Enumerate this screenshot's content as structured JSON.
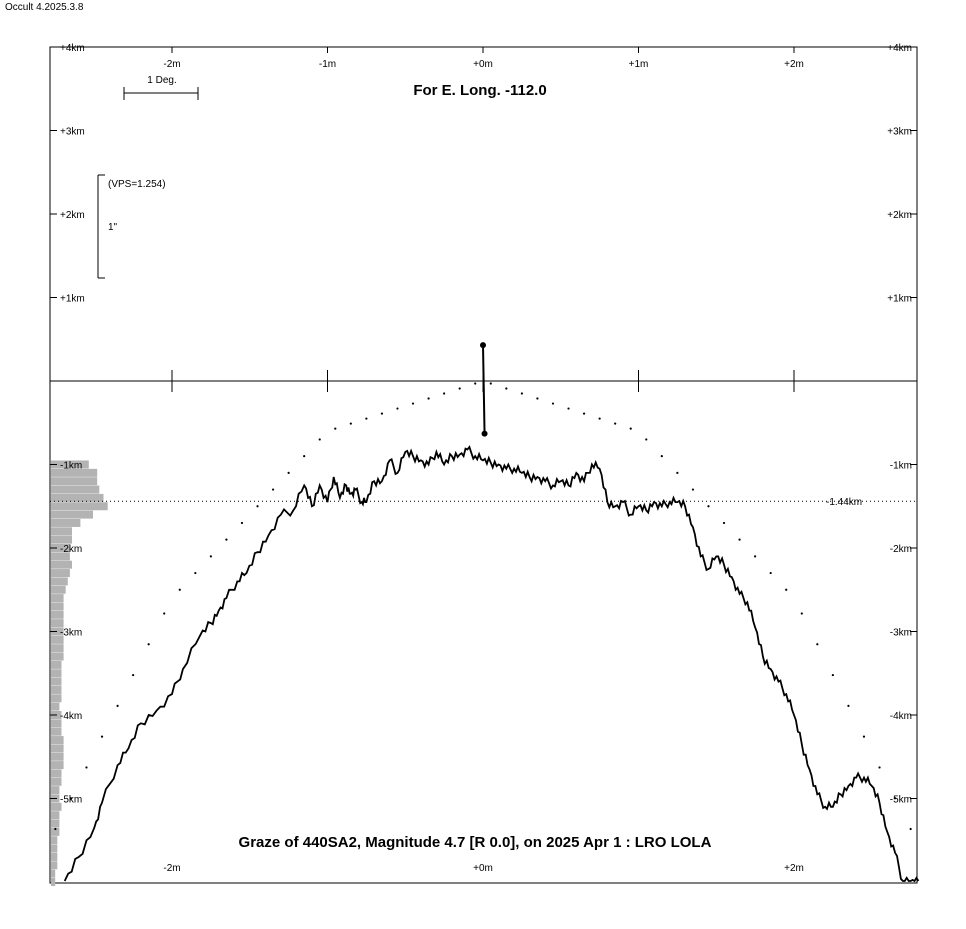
{
  "app": {
    "title": "Occult 4.2025.3.8"
  },
  "chart_data": {
    "type": "line",
    "title": "For E. Long. -112.0",
    "caption": "Graze of  440SA2,  Magnitude 4.7 [R 0.0],  on 2025 Apr  1  :  LRO LOLA",
    "x_axis": {
      "range_m": [
        -2.8,
        2.8
      ],
      "ticks": [
        -2,
        -1,
        0,
        1,
        2
      ],
      "tick_labels": [
        "-2m",
        "-1m",
        "+0m",
        "+1m",
        "+2m"
      ]
    },
    "y_axis": {
      "range_km": [
        -6.0,
        4.0
      ],
      "ticks": [
        4,
        3,
        2,
        1,
        -1,
        -2,
        -3,
        -4,
        -5
      ],
      "tick_labels": [
        "+4km",
        "+3km",
        "+2km",
        "+1km",
        "-1km",
        "-2km",
        "-3km",
        "-4km",
        "-5km"
      ]
    },
    "scale_bar": {
      "label": "1 Deg."
    },
    "vps_bar": {
      "vps_label": "(VPS=1.254)",
      "unit_label": "1\""
    },
    "reference_line": {
      "value_km": -1.44,
      "label": "-1.44km"
    },
    "star_path": {
      "x_m": [
        0.0,
        0.01
      ],
      "y_km": [
        0.43,
        -0.63
      ]
    },
    "limb_profile": {
      "x_m": [
        -2.69,
        -2.6,
        -2.5,
        -2.45,
        -2.35,
        -2.28,
        -2.2,
        -2.1,
        -2.0,
        -1.93,
        -1.82,
        -1.75,
        -1.7,
        -1.65,
        -1.58,
        -1.52,
        -1.45,
        -1.38,
        -1.3,
        -1.22,
        -1.15,
        -1.1,
        -1.05,
        -1.0,
        -0.96,
        -0.92,
        -0.88,
        -0.85,
        -0.82,
        -0.78,
        -0.75,
        -0.7,
        -0.65,
        -0.6,
        -0.55,
        -0.5,
        -0.45,
        -0.4,
        -0.35,
        -0.3,
        -0.25,
        -0.2,
        -0.15,
        -0.1,
        -0.05,
        0.0,
        0.05,
        0.1,
        0.15,
        0.2,
        0.25,
        0.3,
        0.35,
        0.4,
        0.45,
        0.5,
        0.55,
        0.6,
        0.65,
        0.7,
        0.75,
        0.8,
        0.85,
        0.9,
        0.95,
        1.0,
        1.05,
        1.1,
        1.15,
        1.2,
        1.25,
        1.3,
        1.35,
        1.4,
        1.45,
        1.5,
        1.55,
        1.6,
        1.65,
        1.7,
        1.75,
        1.8,
        1.85,
        1.9,
        1.95,
        2.0,
        2.05,
        2.1,
        2.15,
        2.2,
        2.25,
        2.3,
        2.35,
        2.4,
        2.45,
        2.5,
        2.55,
        2.6,
        2.65,
        2.7,
        2.75,
        2.8
      ],
      "y_km": [
        -6.0,
        -5.7,
        -5.35,
        -5.05,
        -4.6,
        -4.4,
        -4.1,
        -3.95,
        -3.75,
        -3.45,
        -3.05,
        -2.9,
        -2.75,
        -2.6,
        -2.4,
        -2.3,
        -2.05,
        -1.85,
        -1.6,
        -1.55,
        -1.25,
        -1.5,
        -1.25,
        -1.45,
        -1.15,
        -1.4,
        -1.25,
        -1.35,
        -1.3,
        -1.45,
        -1.45,
        -1.2,
        -1.2,
        -0.95,
        -1.1,
        -0.85,
        -0.9,
        -0.95,
        -1.0,
        -0.85,
        -1.0,
        -0.9,
        -0.88,
        -0.82,
        -0.9,
        -0.95,
        -0.98,
        -1.0,
        -1.05,
        -1.05,
        -1.1,
        -1.15,
        -1.15,
        -1.2,
        -1.25,
        -1.2,
        -1.25,
        -1.1,
        -1.2,
        -1.0,
        -1.05,
        -1.45,
        -1.5,
        -1.45,
        -1.6,
        -1.5,
        -1.55,
        -1.45,
        -1.5,
        -1.45,
        -1.45,
        -1.5,
        -1.75,
        -2.1,
        -2.25,
        -2.1,
        -2.2,
        -2.35,
        -2.55,
        -2.65,
        -2.95,
        -3.3,
        -3.45,
        -3.6,
        -3.75,
        -4.0,
        -4.35,
        -4.65,
        -4.95,
        -5.1,
        -5.1,
        -4.95,
        -4.85,
        -4.75,
        -4.75,
        -4.85,
        -5.05,
        -5.4,
        -5.65,
        -6.0,
        -6.0,
        -6.0
      ]
    },
    "mean_limb_dots": {
      "x_m": [
        -2.8,
        -2.0,
        -1.0,
        0.0,
        1.0,
        2.0,
        2.8
      ],
      "y_km": [
        -5.55,
        -2.6,
        -0.6,
        0.0,
        -0.6,
        -2.6,
        -5.55
      ]
    },
    "histogram": {
      "y_km": [
        -1.0,
        -1.1,
        -1.2,
        -1.3,
        -1.4,
        -1.5,
        -1.6,
        -1.7,
        -1.8,
        -1.9,
        -2.0,
        -2.1,
        -2.2,
        -2.3,
        -2.4,
        -2.5,
        -2.6,
        -2.7,
        -2.8,
        -2.9,
        -3.0,
        -3.1,
        -3.2,
        -3.3,
        -3.4,
        -3.5,
        -3.6,
        -3.7,
        -3.8,
        -3.9,
        -4.0,
        -4.1,
        -4.2,
        -4.3,
        -4.4,
        -4.5,
        -4.6,
        -4.7,
        -4.8,
        -4.9,
        -5.0,
        -5.1,
        -5.2,
        -5.3,
        -5.4,
        -5.5,
        -5.6,
        -5.7,
        -5.8,
        -5.9,
        -6.0
      ],
      "counts": [
        18,
        22,
        22,
        23,
        25,
        27,
        20,
        14,
        10,
        10,
        9,
        9,
        10,
        9,
        8,
        7,
        6,
        6,
        6,
        6,
        6,
        6,
        6,
        6,
        5,
        5,
        5,
        5,
        5,
        4,
        5,
        5,
        5,
        6,
        6,
        6,
        6,
        5,
        5,
        4,
        4,
        5,
        4,
        4,
        4,
        3,
        3,
        3,
        3,
        2,
        2
      ]
    },
    "grid": false
  }
}
